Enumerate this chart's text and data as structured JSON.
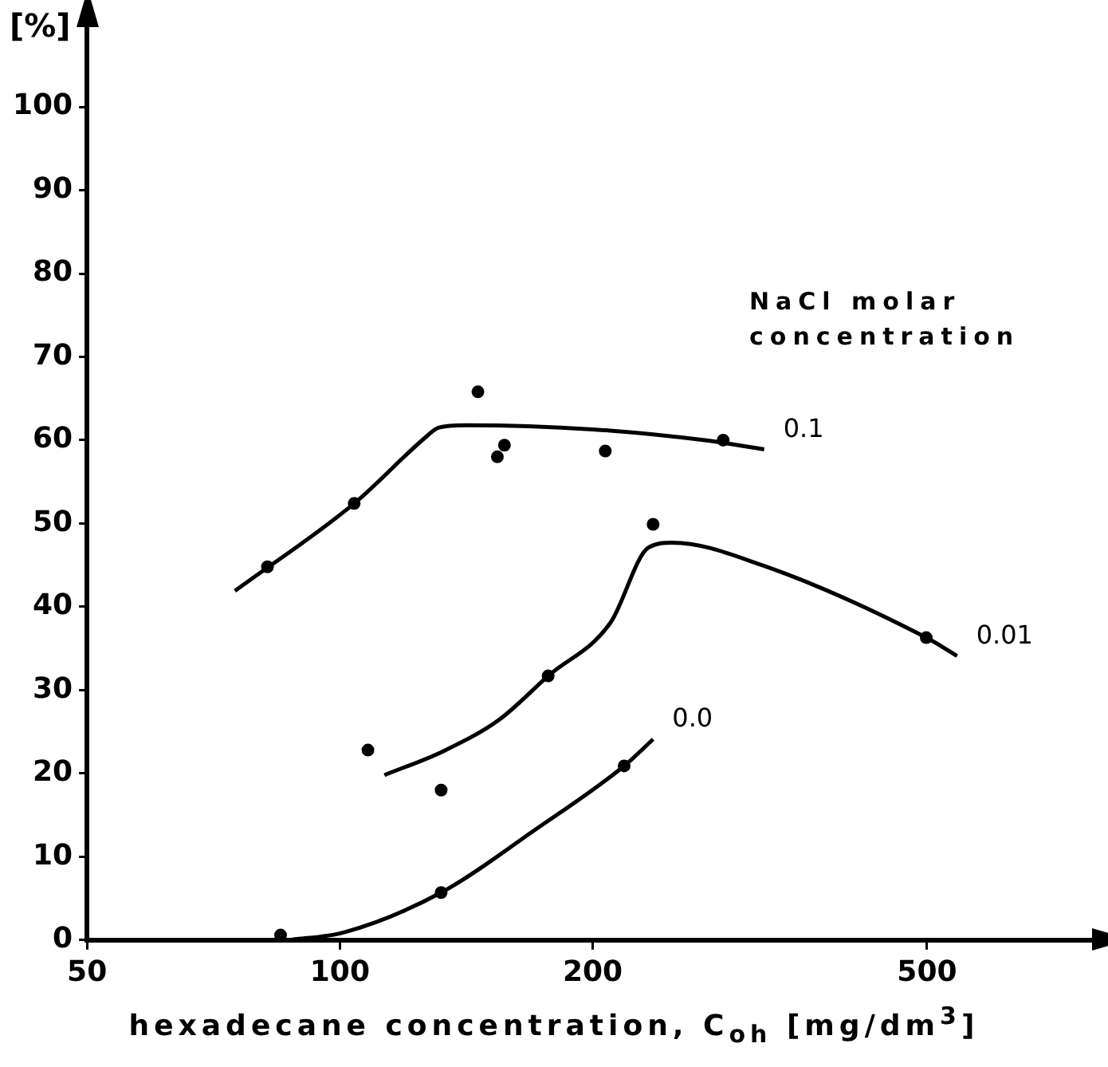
{
  "chart_data": {
    "type": "scatter",
    "xlabel": "hexadecane concentration, C$_{oh}$ [mg/dm$^{3}$]",
    "ylabel": "[%]",
    "log": "x",
    "xlim": [
      50,
      800
    ],
    "xticks": [
      50,
      100,
      200,
      500
    ],
    "ylim": [
      0,
      110
    ],
    "yticks": [
      0,
      10,
      20,
      30,
      40,
      50,
      60,
      70,
      80,
      90,
      100
    ],
    "grid": false,
    "legend": false,
    "series": [
      {
        "type": "scatter",
        "color": "#000000",
        "marker": "circle",
        "x": [
          82,
          104,
          146,
          154,
          157,
          207,
          286
        ],
        "values": [
          44.8,
          52.4,
          65.8,
          58,
          59.4,
          58.7,
          60
        ]
      },
      {
        "type": "scatter",
        "color": "#000000",
        "marker": "circle",
        "x": [
          108,
          132,
          177,
          236,
          499
        ],
        "values": [
          22.8,
          18,
          31.7,
          49.9,
          36.3
        ]
      },
      {
        "type": "scatter",
        "color": "#000000",
        "marker": "circle",
        "x": [
          85,
          132,
          218
        ],
        "values": [
          0.6,
          5.7,
          20.9
        ]
      },
      {
        "type": "line",
        "name": "0.1",
        "color": "#000000",
        "marker": "none",
        "line_style": "solid",
        "x": [
          75,
          104,
          127,
          131,
          141,
          200,
          272,
          320
        ],
        "values": [
          41.9,
          52.4,
          60.5,
          61.5,
          61.8,
          61.3,
          60,
          58.9
        ]
      },
      {
        "type": "line",
        "name": "0.01",
        "color": "#000000",
        "marker": "none",
        "line_style": "solid",
        "x": [
          113,
          133,
          155,
          177,
          210,
          233,
          249,
          316,
          499,
          543
        ],
        "values": [
          19.8,
          22.7,
          26.5,
          31.7,
          38.1,
          47.1,
          47.7,
          45.1,
          36.3,
          34.1
        ]
      },
      {
        "type": "line",
        "name": "0.0",
        "color": "#000000",
        "marker": "none",
        "line_style": "solid",
        "x": [
          87,
          101,
          132,
          170,
          218,
          236
        ],
        "values": [
          0,
          0.9,
          5.7,
          13.1,
          20.9,
          24.1
        ]
      }
    ],
    "annotations": [
      "NaCl molar concentration"
    ]
  }
}
